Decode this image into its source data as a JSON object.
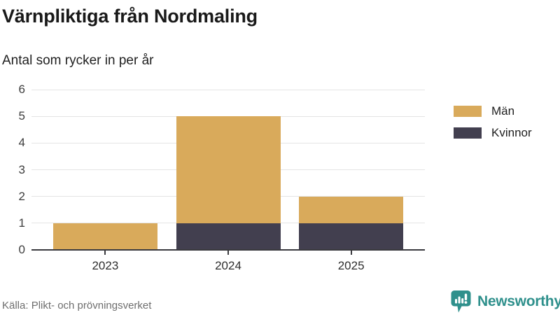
{
  "title": "Värnpliktiga från Nordmaling",
  "subtitle": "Antal som rycker in per år",
  "source": "Källa: Plikt- och prövningsverket",
  "brand": {
    "name": "Newsworthy",
    "color": "#2f908c",
    "icon": "newsworthy-speech-bubble-bar-chart-icon"
  },
  "colors": {
    "man": "#d9aa5b",
    "kvinnor": "#423f4f",
    "grid": "#e4e4e4",
    "axis": "#3a3a3e",
    "text_dark": "#1c1c1c",
    "text_muted": "#6e6e6e"
  },
  "legend": {
    "items": [
      {
        "label": "Män",
        "color": "#d9aa5b"
      },
      {
        "label": "Kvinnor",
        "color": "#423f4f"
      }
    ]
  },
  "chart_data": {
    "type": "bar",
    "stacked": true,
    "title": "Värnpliktiga från Nordmaling",
    "subtitle": "Antal som rycker in per år",
    "categories": [
      "2023",
      "2024",
      "2025"
    ],
    "series": [
      {
        "name": "Kvinnor",
        "color": "#423f4f",
        "values": [
          0,
          1,
          1
        ]
      },
      {
        "name": "Män",
        "color": "#d9aa5b",
        "values": [
          1,
          4,
          1
        ]
      }
    ],
    "stack_order": "first series at bottom",
    "totals": [
      1,
      5,
      2
    ],
    "xlabel": "",
    "ylabel": "",
    "ylim": [
      0,
      6
    ],
    "yticks": [
      0,
      1,
      2,
      3,
      4,
      5,
      6
    ],
    "grid": true,
    "legend_position": "right"
  }
}
